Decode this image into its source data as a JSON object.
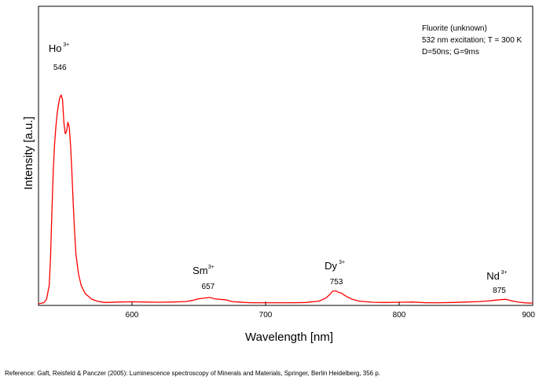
{
  "chart_data": {
    "type": "line",
    "title": "",
    "xlabel": "Wavelength [nm]",
    "ylabel": "Intensity [a.u.]",
    "xlim": [
      530,
      900
    ],
    "ylim": [
      0,
      1
    ],
    "x_ticks": [
      600,
      700,
      800,
      900
    ],
    "y_ticks": [],
    "grid": false,
    "legend_position": "top-right",
    "legend_lines": [
      "Fluorite (unknown)",
      "532 nm excitation; T = 300 K",
      "D=50ns; G=9ms"
    ],
    "line_color": "#ff0000",
    "series": [
      {
        "x": [
          530,
          534,
          536,
          538,
          539,
          540,
          541,
          542,
          543,
          544,
          545,
          546,
          547,
          548,
          549,
          550,
          551,
          552,
          553,
          554,
          555,
          556,
          557,
          558,
          560,
          562,
          565,
          570,
          575,
          580,
          590,
          600,
          610,
          620,
          630,
          640,
          645,
          650,
          655,
          658,
          662,
          665,
          670,
          675,
          680,
          685,
          690,
          700,
          710,
          720,
          730,
          740,
          745,
          748,
          750,
          752,
          753,
          755,
          757,
          758,
          760,
          762,
          765,
          770,
          780,
          790,
          800,
          810,
          820,
          830,
          840,
          850,
          860,
          865,
          870,
          875,
          880,
          885,
          890,
          895,
          900
        ],
        "y": [
          0.0,
          0.005,
          0.02,
          0.08,
          0.2,
          0.4,
          0.58,
          0.7,
          0.78,
          0.84,
          0.88,
          0.91,
          0.92,
          0.9,
          0.8,
          0.75,
          0.76,
          0.8,
          0.78,
          0.7,
          0.58,
          0.44,
          0.32,
          0.22,
          0.13,
          0.08,
          0.045,
          0.02,
          0.01,
          0.006,
          0.008,
          0.009,
          0.008,
          0.007,
          0.008,
          0.01,
          0.015,
          0.022,
          0.026,
          0.028,
          0.022,
          0.02,
          0.018,
          0.01,
          0.008,
          0.006,
          0.005,
          0.005,
          0.005,
          0.005,
          0.006,
          0.012,
          0.025,
          0.04,
          0.055,
          0.057,
          0.056,
          0.05,
          0.047,
          0.042,
          0.035,
          0.028,
          0.02,
          0.012,
          0.007,
          0.006,
          0.007,
          0.008,
          0.005,
          0.005,
          0.006,
          0.008,
          0.01,
          0.012,
          0.015,
          0.018,
          0.02,
          0.012,
          0.007,
          0.004,
          0.003
        ]
      }
    ],
    "annotations": [
      {
        "ion": "Ho",
        "charge": "3+",
        "wavelength": "546",
        "x": 546
      },
      {
        "ion": "Sm",
        "charge": "3+",
        "wavelength": "657",
        "x": 657
      },
      {
        "ion": "Dy",
        "charge": "3+",
        "wavelength": "753",
        "x": 753
      },
      {
        "ion": "Nd",
        "charge": "3+",
        "wavelength": "875",
        "x": 875
      }
    ]
  },
  "reference": "Reference: Gaft, Reisfeld & Panczer (2005): Luminescence spectroscopy of Minerals and Materials, Springer, Berlin Heidelberg, 356 p."
}
